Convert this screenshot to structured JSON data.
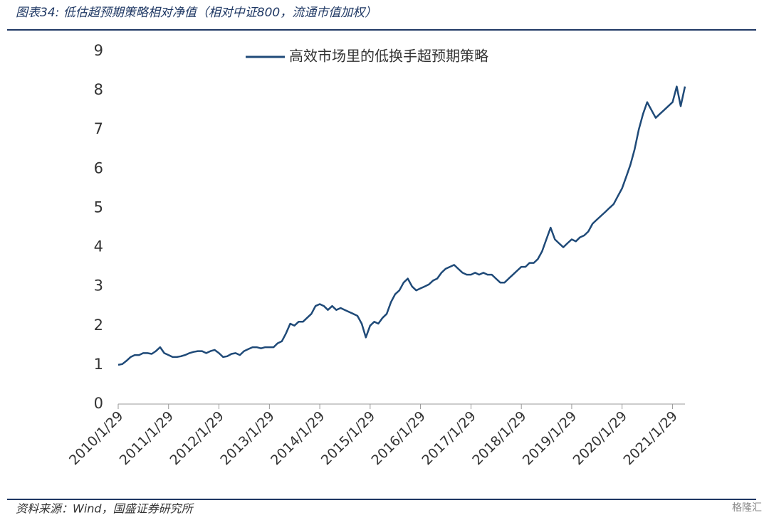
{
  "chart_data": {
    "type": "line",
    "title": "图表34:  低估超预期策略相对净值（相对中证800，流通市值加权）",
    "source": "资料来源：Wind，国盛证券研究所",
    "watermark": "格隆汇",
    "xlim": [
      "2010/1/29",
      "2021/4/29"
    ],
    "xticks": [
      "2010/1/29",
      "2011/1/29",
      "2012/1/29",
      "2013/1/29",
      "2014/1/29",
      "2015/1/29",
      "2016/1/29",
      "2017/1/29",
      "2018/1/29",
      "2019/1/29",
      "2020/1/29",
      "2021/1/29"
    ],
    "ylim": [
      0,
      9
    ],
    "yticks": [
      0,
      1,
      2,
      3,
      4,
      5,
      6,
      7,
      8,
      9
    ],
    "grid": false,
    "legend": "top",
    "x": [
      "2010/1/29",
      "2010/2/28",
      "2010/3/29",
      "2010/4/29",
      "2010/5/29",
      "2010/6/29",
      "2010/7/29",
      "2010/8/29",
      "2010/9/29",
      "2010/10/29",
      "2010/11/29",
      "2010/12/29",
      "2011/1/29",
      "2011/2/28",
      "2011/3/29",
      "2011/4/29",
      "2011/5/29",
      "2011/6/29",
      "2011/7/29",
      "2011/8/29",
      "2011/9/29",
      "2011/10/29",
      "2011/11/29",
      "2011/12/29",
      "2012/1/29",
      "2012/2/28",
      "2012/3/29",
      "2012/4/29",
      "2012/5/29",
      "2012/6/29",
      "2012/7/29",
      "2012/8/29",
      "2012/9/29",
      "2012/10/29",
      "2012/11/29",
      "2012/12/29",
      "2013/1/29",
      "2013/2/28",
      "2013/3/29",
      "2013/4/29",
      "2013/5/29",
      "2013/6/29",
      "2013/7/29",
      "2013/8/29",
      "2013/9/29",
      "2013/10/29",
      "2013/11/29",
      "2013/12/29",
      "2014/1/29",
      "2014/2/28",
      "2014/3/29",
      "2014/4/29",
      "2014/5/29",
      "2014/6/29",
      "2014/7/29",
      "2014/8/29",
      "2014/9/29",
      "2014/10/29",
      "2014/11/29",
      "2014/12/29",
      "2015/1/29",
      "2015/2/28",
      "2015/3/29",
      "2015/4/29",
      "2015/5/29",
      "2015/6/29",
      "2015/7/29",
      "2015/8/29",
      "2015/9/29",
      "2015/10/29",
      "2015/11/29",
      "2015/12/29",
      "2016/1/29",
      "2016/2/28",
      "2016/3/29",
      "2016/4/29",
      "2016/5/29",
      "2016/6/29",
      "2016/7/29",
      "2016/8/29",
      "2016/9/29",
      "2016/10/29",
      "2016/11/29",
      "2016/12/29",
      "2017/1/29",
      "2017/2/28",
      "2017/3/29",
      "2017/4/29",
      "2017/5/29",
      "2017/6/29",
      "2017/7/29",
      "2017/8/29",
      "2017/9/29",
      "2017/10/29",
      "2017/11/29",
      "2017/12/29",
      "2018/1/29",
      "2018/2/28",
      "2018/3/29",
      "2018/4/29",
      "2018/5/29",
      "2018/6/29",
      "2018/7/29",
      "2018/8/29",
      "2018/9/29",
      "2018/10/29",
      "2018/11/29",
      "2018/12/29",
      "2019/1/29",
      "2019/2/28",
      "2019/3/29",
      "2019/4/29",
      "2019/5/29",
      "2019/6/29",
      "2019/7/29",
      "2019/8/29",
      "2019/9/29",
      "2019/10/29",
      "2019/11/29",
      "2019/12/29",
      "2020/1/29",
      "2020/2/28",
      "2020/3/29",
      "2020/4/29",
      "2020/5/29",
      "2020/6/29",
      "2020/7/29",
      "2020/8/29",
      "2020/9/29",
      "2020/10/29",
      "2020/11/29",
      "2020/12/29",
      "2021/1/29",
      "2021/2/28",
      "2021/3/29",
      "2021/4/29"
    ],
    "series": [
      {
        "name": "高效市场里的低换手超预期策略",
        "color": "#1f4a78",
        "values": [
          1.0,
          1.02,
          1.1,
          1.2,
          1.25,
          1.25,
          1.3,
          1.3,
          1.28,
          1.35,
          1.45,
          1.3,
          1.25,
          1.2,
          1.2,
          1.22,
          1.25,
          1.3,
          1.33,
          1.35,
          1.35,
          1.3,
          1.35,
          1.38,
          1.3,
          1.2,
          1.22,
          1.28,
          1.3,
          1.25,
          1.35,
          1.4,
          1.45,
          1.45,
          1.42,
          1.45,
          1.45,
          1.45,
          1.55,
          1.6,
          1.8,
          2.05,
          2.0,
          2.1,
          2.1,
          2.2,
          2.3,
          2.5,
          2.55,
          2.5,
          2.4,
          2.5,
          2.4,
          2.45,
          2.4,
          2.35,
          2.3,
          2.25,
          2.05,
          1.7,
          2.0,
          2.1,
          2.05,
          2.2,
          2.3,
          2.6,
          2.8,
          2.9,
          3.1,
          3.2,
          3.0,
          2.9,
          2.95,
          3.0,
          3.05,
          3.15,
          3.2,
          3.35,
          3.45,
          3.5,
          3.55,
          3.45,
          3.35,
          3.3,
          3.3,
          3.35,
          3.3,
          3.35,
          3.3,
          3.3,
          3.2,
          3.1,
          3.1,
          3.2,
          3.3,
          3.4,
          3.5,
          3.5,
          3.6,
          3.6,
          3.7,
          3.9,
          4.2,
          4.5,
          4.2,
          4.1,
          4.0,
          4.1,
          4.2,
          4.15,
          4.25,
          4.3,
          4.4,
          4.6,
          4.7,
          4.8,
          4.9,
          5.0,
          5.1,
          5.3,
          5.5,
          5.8,
          6.1,
          6.5,
          7.0,
          7.4,
          7.7,
          7.5,
          7.3,
          7.4,
          7.5,
          7.6,
          7.7,
          8.1,
          7.6,
          8.1
        ]
      }
    ]
  }
}
